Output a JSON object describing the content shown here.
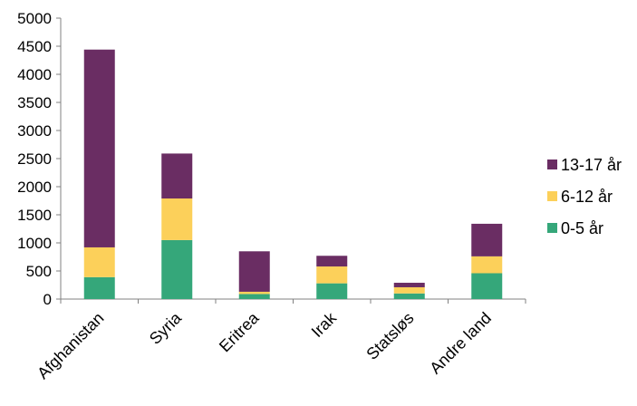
{
  "chart_data": {
    "type": "bar",
    "stacked": true,
    "title": "",
    "xlabel": "",
    "ylabel": "",
    "ylim": [
      0,
      5000
    ],
    "yticks": [
      0,
      500,
      1000,
      1500,
      2000,
      2500,
      3000,
      3500,
      4000,
      4500,
      5000
    ],
    "grid": false,
    "legend_position": "right",
    "categories": [
      "Afghanistan",
      "Syria",
      "Eritrea",
      "Irak",
      "Statsløs",
      "Andre land"
    ],
    "series": [
      {
        "name": "0-5 år",
        "color": "#35a77a",
        "values": [
          390,
          1050,
          90,
          280,
          100,
          460
        ]
      },
      {
        "name": "6-12 år",
        "color": "#fcd05a",
        "values": [
          530,
          740,
          40,
          300,
          110,
          300
        ]
      },
      {
        "name": "13-17 år",
        "color": "#6a2d63",
        "values": [
          3520,
          800,
          720,
          190,
          80,
          580
        ]
      }
    ]
  }
}
